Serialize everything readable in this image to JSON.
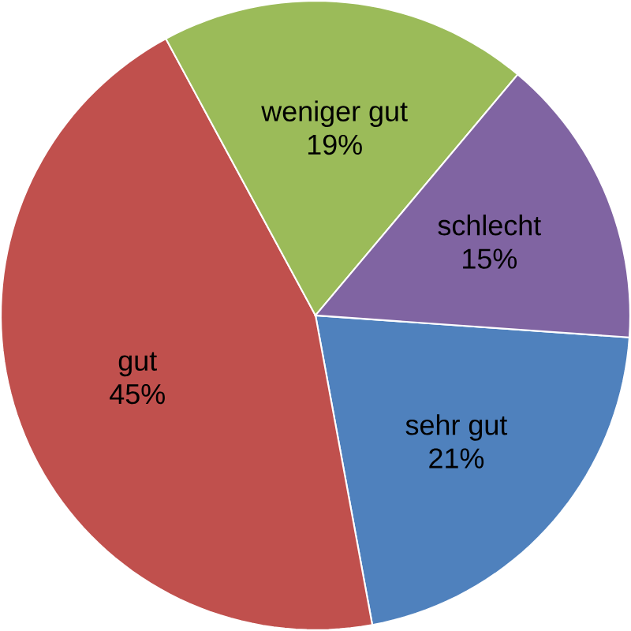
{
  "chart_data": {
    "type": "pie",
    "categories": [
      "sehr gut",
      "gut",
      "weniger gut",
      "schlecht"
    ],
    "values": [
      21,
      45,
      19,
      15
    ],
    "value_labels": [
      "21%",
      "45%",
      "19%",
      "15%"
    ],
    "colors": [
      "#4f81bd",
      "#c0504d",
      "#9bbb59",
      "#8064a2"
    ]
  }
}
